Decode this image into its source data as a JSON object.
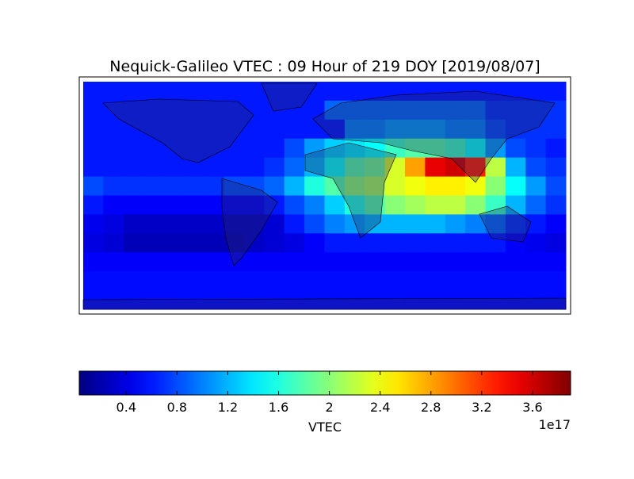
{
  "chart_data": {
    "type": "heatmap",
    "title": "Nequick-Galileo VTEC : 09 Hour of 219 DOY [2019/08/07]",
    "xlim": [
      -180,
      180
    ],
    "ylim": [
      -90,
      90
    ],
    "z": [
      [
        0.6,
        0.6,
        0.6,
        0.6,
        0.6,
        0.6,
        0.6,
        0.6,
        0.6,
        0.6,
        0.6,
        0.6,
        0.6,
        0.6,
        0.6,
        0.6,
        0.6,
        0.6,
        0.6,
        0.6,
        0.6,
        0.6,
        0.6,
        0.6
      ],
      [
        0.6,
        0.6,
        0.6,
        0.6,
        0.6,
        0.6,
        0.6,
        0.6,
        0.6,
        0.6,
        0.6,
        0.6,
        0.9,
        0.9,
        0.9,
        0.9,
        0.9,
        0.9,
        0.9,
        0.9,
        0.7,
        0.7,
        0.7,
        0.7
      ],
      [
        0.6,
        0.6,
        0.6,
        0.6,
        0.6,
        0.6,
        0.6,
        0.6,
        0.6,
        0.6,
        0.6,
        0.6,
        0.6,
        1.0,
        1.0,
        1.1,
        1.1,
        1.1,
        1.0,
        1.0,
        0.8,
        0.7,
        0.7,
        0.7
      ],
      [
        0.6,
        0.6,
        0.6,
        0.6,
        0.6,
        0.6,
        0.6,
        0.6,
        0.6,
        0.6,
        0.8,
        1.1,
        1.3,
        1.4,
        1.5,
        1.7,
        1.8,
        1.8,
        1.7,
        1.5,
        1.1,
        0.8,
        0.7,
        0.6
      ],
      [
        0.6,
        0.6,
        0.6,
        0.6,
        0.6,
        0.6,
        0.6,
        0.6,
        0.6,
        0.7,
        0.9,
        1.2,
        1.5,
        1.8,
        1.9,
        2.3,
        2.8,
        3.5,
        3.6,
        3.3,
        2.2,
        1.2,
        0.8,
        0.7
      ],
      [
        0.8,
        0.7,
        0.7,
        0.7,
        0.7,
        0.7,
        0.7,
        0.8,
        0.8,
        0.9,
        1.2,
        1.6,
        1.8,
        2.0,
        2.1,
        2.3,
        2.4,
        2.5,
        2.5,
        2.4,
        2.0,
        1.5,
        1.1,
        0.8
      ],
      [
        0.6,
        0.5,
        0.5,
        0.5,
        0.5,
        0.5,
        0.5,
        0.5,
        0.5,
        0.6,
        0.8,
        1.0,
        1.3,
        1.6,
        1.8,
        2.0,
        2.1,
        2.2,
        2.2,
        2.0,
        1.7,
        1.2,
        0.9,
        0.7
      ],
      [
        0.45,
        0.4,
        0.3,
        0.3,
        0.3,
        0.3,
        0.3,
        0.3,
        0.3,
        0.35,
        0.6,
        0.8,
        1.0,
        1.1,
        1.2,
        1.2,
        1.2,
        1.2,
        1.1,
        1.0,
        0.9,
        0.7,
        0.6,
        0.5
      ],
      [
        0.4,
        0.35,
        0.25,
        0.25,
        0.25,
        0.25,
        0.25,
        0.25,
        0.3,
        0.35,
        0.4,
        0.5,
        0.6,
        0.6,
        0.6,
        0.6,
        0.6,
        0.6,
        0.6,
        0.6,
        0.6,
        0.5,
        0.45,
        0.4
      ],
      [
        0.5,
        0.5,
        0.5,
        0.5,
        0.5,
        0.5,
        0.5,
        0.5,
        0.5,
        0.5,
        0.5,
        0.5,
        0.5,
        0.5,
        0.5,
        0.5,
        0.5,
        0.5,
        0.5,
        0.5,
        0.5,
        0.5,
        0.5,
        0.5
      ],
      [
        0.55,
        0.55,
        0.55,
        0.55,
        0.55,
        0.55,
        0.55,
        0.55,
        0.55,
        0.55,
        0.55,
        0.55,
        0.55,
        0.55,
        0.55,
        0.55,
        0.55,
        0.55,
        0.55,
        0.55,
        0.55,
        0.55,
        0.55,
        0.55
      ],
      [
        0.55,
        0.55,
        0.55,
        0.55,
        0.55,
        0.55,
        0.55,
        0.55,
        0.55,
        0.55,
        0.55,
        0.55,
        0.55,
        0.55,
        0.55,
        0.55,
        0.55,
        0.55,
        0.55,
        0.55,
        0.55,
        0.55,
        0.55,
        0.55
      ]
    ],
    "colormap": "jet",
    "clim": [
      0.03,
      3.9
    ],
    "colorbar_ticks": [
      0.4,
      0.8,
      1.2,
      1.6,
      2.0,
      2.4,
      2.8,
      3.2,
      3.6
    ],
    "colorbar_label": "VTEC",
    "colorbar_offset": "1e17"
  }
}
